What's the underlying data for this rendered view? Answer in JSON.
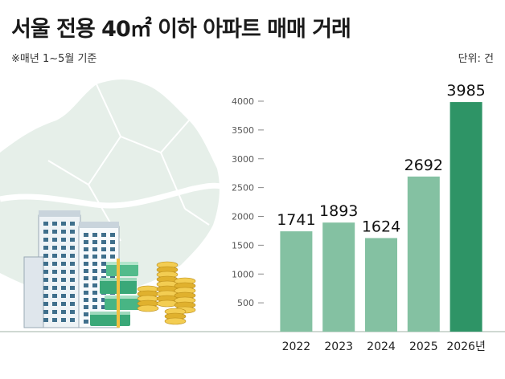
{
  "header": {
    "title": "서울 전용 40㎡ 이하 아파트 매매 거래",
    "subtitle": "※매년 1~5월 기준",
    "unit": "단위: 건"
  },
  "chart_data": {
    "type": "bar",
    "title": "서울 전용 40㎡ 이하 아파트 매매 거래",
    "subtitle": "※매년 1~5월 기준",
    "ylabel": "단위: 건",
    "categories": [
      "2022",
      "2023",
      "2024",
      "2025",
      "2026년"
    ],
    "values": [
      1741,
      1893,
      1624,
      2692,
      3985
    ],
    "ylim": [
      0,
      4000
    ],
    "yticks": [
      500,
      1000,
      1500,
      2000,
      2500,
      3000,
      3500,
      4000
    ],
    "grid": false,
    "colors": {
      "bar": "#84c1a2",
      "highlight": "#2e9466"
    }
  }
}
